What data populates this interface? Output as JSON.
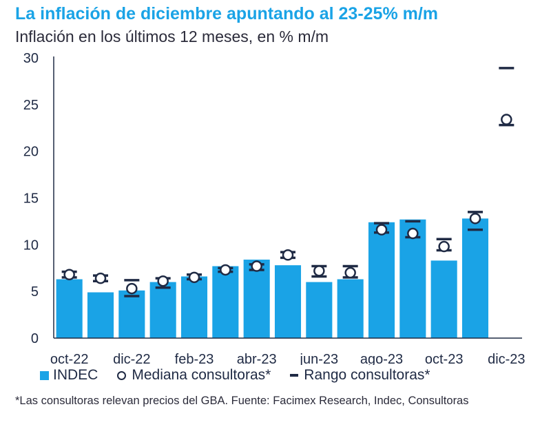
{
  "title": "La inflación de diciembre apuntando al 23-25% m/m",
  "subtitle": "Inflación en los últimos 12 meses, en % m/m",
  "legend": {
    "indec": "INDEC",
    "median": "Mediana consultoras*",
    "range": "Rango consultoras*"
  },
  "footnote": "*Las consultoras relevan precios del GBA. Fuente: Facimex Research, Indec, Consultoras",
  "colors": {
    "bar": "#1aa3e6",
    "marker": "#1f2a44",
    "axis": "#1f2a44"
  },
  "chart_data": {
    "type": "bar",
    "categories": [
      "oct-22",
      "nov-22",
      "dic-22",
      "ene-23",
      "feb-23",
      "mar-23",
      "abr-23",
      "may-23",
      "jun-23",
      "jul-23",
      "ago-23",
      "sep-23",
      "oct-23",
      "nov-23",
      "dic-23"
    ],
    "x_tick_labels": [
      "oct-22",
      "",
      "dic-22",
      "",
      "feb-23",
      "",
      "abr-23",
      "",
      "jun-23",
      "",
      "ago-23",
      "",
      "oct-23",
      "",
      "dic-23"
    ],
    "series": [
      {
        "name": "INDEC",
        "type": "bar",
        "values": [
          6.3,
          4.9,
          5.1,
          6.0,
          6.6,
          7.7,
          8.4,
          7.8,
          6.0,
          6.3,
          12.4,
          12.7,
          8.3,
          12.8,
          null
        ]
      },
      {
        "name": "Mediana consultoras*",
        "type": "marker-circle",
        "values": [
          6.8,
          6.4,
          5.3,
          6.1,
          6.5,
          7.3,
          7.7,
          8.9,
          7.2,
          7.0,
          11.6,
          11.2,
          9.8,
          12.8,
          23.4
        ]
      },
      {
        "name": "Rango consultoras*",
        "type": "range",
        "low": [
          6.5,
          6.1,
          4.5,
          5.4,
          6.3,
          7.1,
          7.3,
          8.6,
          6.6,
          6.5,
          11.3,
          10.8,
          9.4,
          11.6,
          22.8
        ],
        "high": [
          7.1,
          6.7,
          6.2,
          6.4,
          6.8,
          7.5,
          7.9,
          9.2,
          7.7,
          7.7,
          12.3,
          12.5,
          10.6,
          13.5,
          28.9
        ]
      }
    ],
    "yticks": [
      0,
      5,
      10,
      15,
      20,
      25,
      30
    ],
    "ylim": [
      0,
      30
    ],
    "grid": false,
    "legend_position": "bottom"
  }
}
